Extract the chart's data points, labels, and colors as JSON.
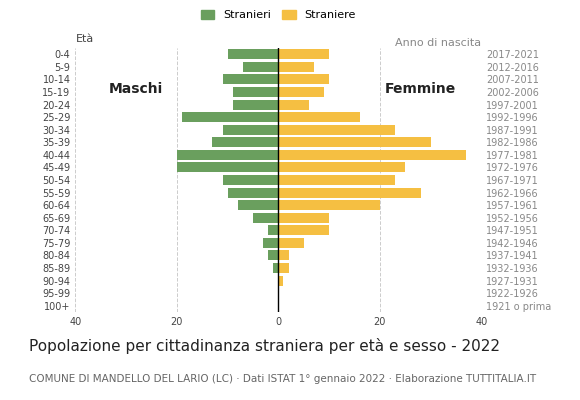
{
  "age_groups": [
    "100+",
    "95-99",
    "90-94",
    "85-89",
    "80-84",
    "75-79",
    "70-74",
    "65-69",
    "60-64",
    "55-59",
    "50-54",
    "45-49",
    "40-44",
    "35-39",
    "30-34",
    "25-29",
    "20-24",
    "15-19",
    "10-14",
    "5-9",
    "0-4"
  ],
  "birth_years": [
    "1921 o prima",
    "1922-1926",
    "1927-1931",
    "1932-1936",
    "1937-1941",
    "1942-1946",
    "1947-1951",
    "1952-1956",
    "1957-1961",
    "1962-1966",
    "1967-1971",
    "1972-1976",
    "1977-1981",
    "1982-1986",
    "1987-1991",
    "1992-1996",
    "1997-2001",
    "2002-2006",
    "2007-2011",
    "2012-2016",
    "2017-2021"
  ],
  "males": [
    0,
    0,
    0,
    1,
    2,
    3,
    2,
    5,
    8,
    10,
    11,
    20,
    20,
    13,
    11,
    19,
    9,
    9,
    11,
    7,
    10
  ],
  "females": [
    0,
    0,
    1,
    2,
    2,
    5,
    10,
    10,
    20,
    28,
    23,
    25,
    37,
    30,
    23,
    16,
    6,
    9,
    10,
    7,
    10
  ],
  "male_color": "#6a9f5e",
  "female_color": "#f5bf42",
  "xlim": 40,
  "title": "Popolazione per cittadinanza straniera per età e sesso - 2022",
  "subtitle": "COMUNE DI MANDELLO DEL LARIO (LC) · Dati ISTAT 1° gennaio 2022 · Elaborazione TUTTITALIA.IT",
  "ylabel_left": "Età",
  "ylabel_right": "Anno di nascita",
  "legend_male": "Stranieri",
  "legend_female": "Straniere",
  "label_maschi": "Maschi",
  "label_femmine": "Femmine",
  "bg_color": "#ffffff",
  "grid_color": "#cccccc",
  "bar_height": 0.8,
  "title_fontsize": 11,
  "subtitle_fontsize": 7.5,
  "tick_fontsize": 7,
  "label_fontsize": 10
}
